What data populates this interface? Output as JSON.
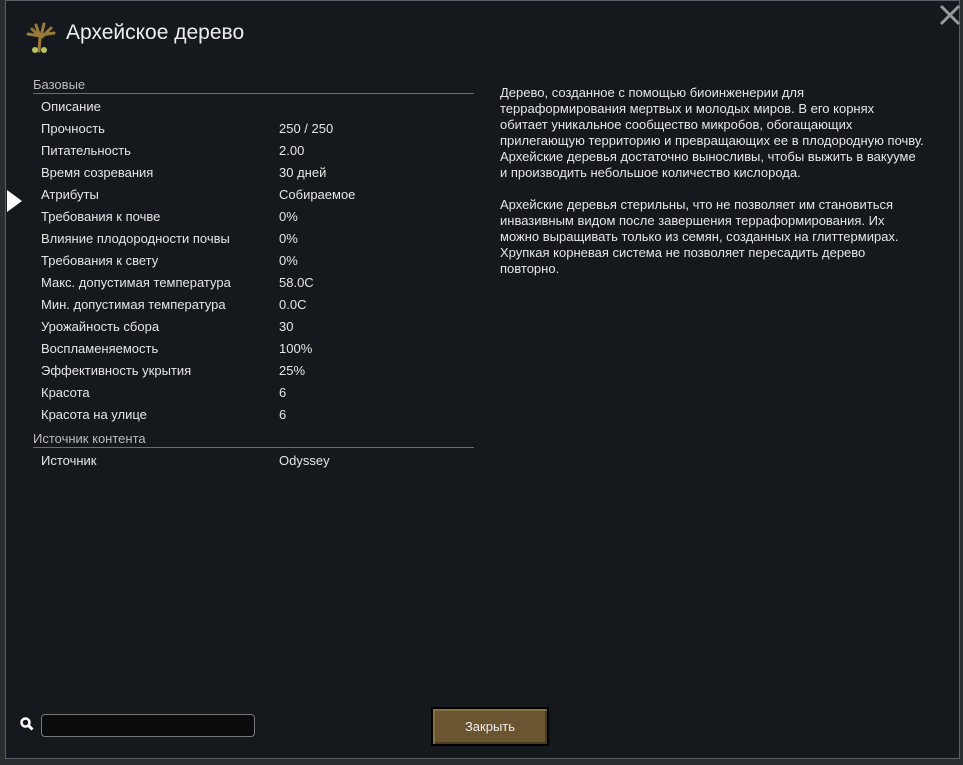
{
  "window": {
    "title": "Архейское дерево",
    "icon": "archotree-icon"
  },
  "sections": [
    {
      "header": "Базовые",
      "rows": [
        [
          "Описание",
          ""
        ],
        [
          "Прочность",
          "250 / 250"
        ],
        [
          "Питательность",
          "2.00"
        ],
        [
          "Время созревания",
          "30 дней"
        ],
        [
          "Атрибуты",
          "Собираемое"
        ],
        [
          "Требования к почве",
          "0%"
        ],
        [
          "Влияние плодородности почвы",
          "0%"
        ],
        [
          "Требования к свету",
          "0%"
        ],
        [
          "Макс. допустимая температура",
          "58.0C"
        ],
        [
          "Мин. допустимая температура",
          "0.0C"
        ],
        [
          "Урожайность сбора",
          "30"
        ],
        [
          "Воспламеняемость",
          "100%"
        ],
        [
          "Эффективность укрытия",
          "25%"
        ],
        [
          "Красота",
          "6"
        ],
        [
          "Красота на улице",
          "6"
        ]
      ]
    },
    {
      "header": "Источник контента",
      "rows": [
        [
          "Источник",
          "Odyssey"
        ]
      ]
    }
  ],
  "description": "Дерево, созданное с помощью биоинженерии для терраформирования мертвых и молодых миров. В его корнях обитает уникальное сообщество микробов, обогащающих прилегающую территорию и превращающих ее в плодородную почву. Архейские деревья достаточно выносливы, чтобы выжить в вакууме и производить небольшое количество кислорода.\n\nАрхейские деревья стерильны, что не позволяет им становиться инвазивным видом после завершения терраформирования. Их можно выращивать только из семян, созданных на глиттермирах. Хрупкая корневая система не позволяет пересадить дерево повторно.",
  "search": {
    "value": "",
    "placeholder": ""
  },
  "close_button": "Закрыть",
  "colors": {
    "background": "#15181d",
    "button": "#6b5530"
  }
}
